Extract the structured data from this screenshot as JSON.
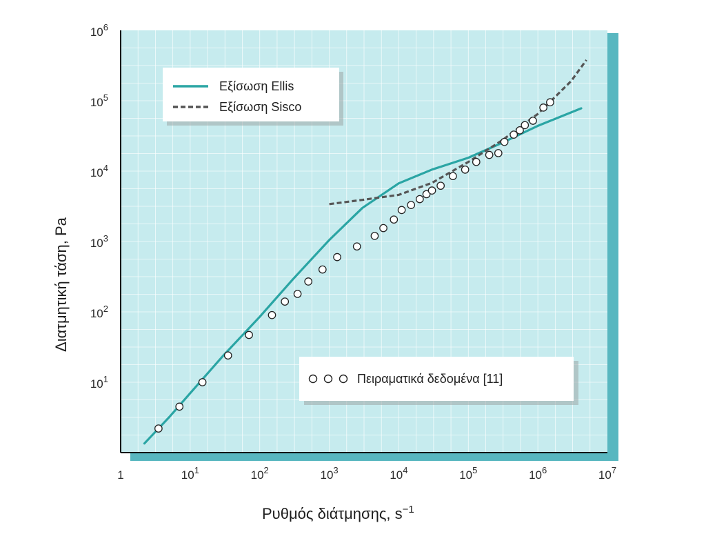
{
  "chart_data": {
    "type": "line",
    "title": "",
    "xlabel": "Ρυθμός διάτμησης,  s",
    "xlabel_sup": "−1",
    "ylabel": "Διατμητική τάση,  Pa",
    "x_scale": "log",
    "y_scale": "log",
    "xlim": [
      1,
      10000000
    ],
    "ylim": [
      1,
      1000000
    ],
    "x_ticks": [
      {
        "value": 1,
        "base": "1",
        "exp": ""
      },
      {
        "value": 10,
        "base": "10",
        "exp": "1"
      },
      {
        "value": 100,
        "base": "10",
        "exp": "2"
      },
      {
        "value": 1000,
        "base": "10",
        "exp": "3"
      },
      {
        "value": 10000,
        "base": "10",
        "exp": "4"
      },
      {
        "value": 100000,
        "base": "10",
        "exp": "5"
      },
      {
        "value": 1000000,
        "base": "10",
        "exp": "6"
      },
      {
        "value": 10000000,
        "base": "10",
        "exp": "7"
      }
    ],
    "y_ticks": [
      {
        "value": 10,
        "base": "10",
        "exp": "1"
      },
      {
        "value": 100,
        "base": "10",
        "exp": "2"
      },
      {
        "value": 1000,
        "base": "10",
        "exp": "3"
      },
      {
        "value": 10000,
        "base": "10",
        "exp": "4"
      },
      {
        "value": 100000,
        "base": "10",
        "exp": "5"
      },
      {
        "value": 1000000,
        "base": "10",
        "exp": "6"
      }
    ],
    "grid": true,
    "colors": {
      "background": "#c6ebee",
      "shadow": "#58b7c0",
      "ellis": "#2aa5a4",
      "sisco": "#555555",
      "grid": "#ffffff"
    },
    "series": [
      {
        "name": "Εξίσωση Ellis",
        "style": "solid",
        "x": [
          2.2,
          5,
          10,
          30,
          100,
          300,
          1000,
          3000,
          10000,
          30000,
          100000,
          300000,
          1000000,
          4200000
        ],
        "y": [
          1.35,
          3.2,
          7,
          24,
          85,
          290,
          1050,
          3000,
          6700,
          10500,
          15500,
          25000,
          44000,
          78000
        ]
      },
      {
        "name": "Εξίσωση Sisco",
        "style": "dashed",
        "x": [
          1000,
          3000,
          10000,
          30000,
          100000,
          300000,
          1000000,
          3000000,
          5000000
        ],
        "y": [
          3400,
          3900,
          4600,
          6800,
          13500,
          27000,
          65000,
          190000,
          380000
        ]
      },
      {
        "name": "Πειραματικά δεδομένα [11]",
        "style": "markers",
        "x": [
          3.5,
          7,
          15,
          35,
          70,
          150,
          230,
          350,
          500,
          800,
          1300,
          2500,
          4500,
          6000,
          8500,
          11000,
          15000,
          20000,
          25000,
          30000,
          40000,
          60000,
          90000,
          130000,
          200000,
          270000,
          330000,
          450000,
          550000,
          650000,
          850000,
          1200000,
          1500000
        ],
        "y": [
          2.2,
          4.5,
          10,
          24,
          47,
          90,
          140,
          180,
          270,
          400,
          600,
          850,
          1200,
          1550,
          2050,
          2800,
          3300,
          4000,
          4700,
          5300,
          6200,
          8500,
          10500,
          13500,
          17000,
          18000,
          26000,
          33000,
          38000,
          45000,
          52000,
          80000,
          95000
        ]
      }
    ],
    "legend_top": {
      "position": "top-left",
      "entries": [
        {
          "label": "Εξίσωση Ellis",
          "style": "solid"
        },
        {
          "label": "Εξίσωση Sisco",
          "style": "dashed"
        }
      ]
    },
    "legend_bottom": {
      "position": "bottom-right",
      "entries": [
        {
          "label": "Πειραματικά δεδομένα [11]",
          "style": "markers"
        }
      ]
    }
  }
}
